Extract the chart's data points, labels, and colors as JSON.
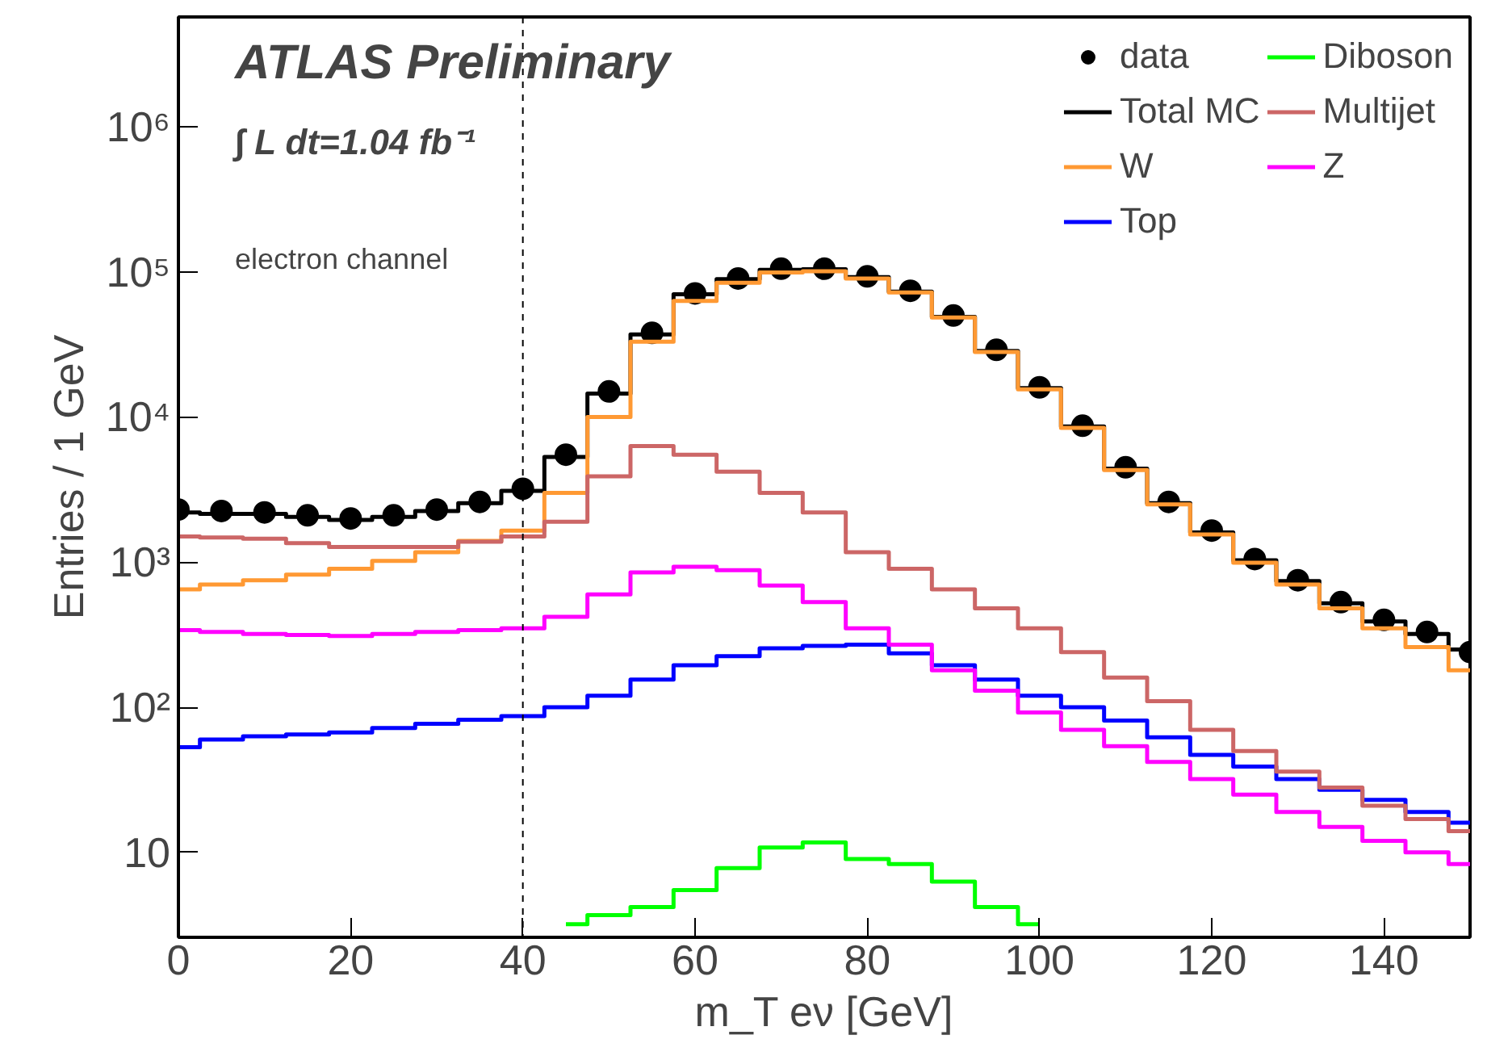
{
  "chart_data": {
    "type": "step",
    "title": "ATLAS Preliminary",
    "annotations": [
      "∫ L dt=1.04 fb⁻¹",
      "electron channel"
    ],
    "xlabel": "m_T eν [GeV]",
    "ylabel": "Entries / 1 GeV",
    "x": [
      0,
      5,
      10,
      15,
      20,
      25,
      30,
      35,
      40,
      45,
      50,
      55,
      60,
      65,
      70,
      75,
      80,
      85,
      90,
      95,
      100,
      105,
      110,
      115,
      120,
      125,
      130,
      135,
      140,
      145,
      150
    ],
    "xlim": [
      0,
      150
    ],
    "xticks": [
      0,
      20,
      40,
      60,
      80,
      100,
      120,
      140
    ],
    "ylim": [
      2.6,
      5700000
    ],
    "log": "y",
    "yticks": [
      10,
      {
        "value": 100,
        "label": "10²"
      },
      {
        "value": 1000,
        "label": "10³"
      },
      {
        "value": 10000,
        "label": "10⁴"
      },
      {
        "value": 100000,
        "label": "10⁵"
      },
      {
        "value": 1000000,
        "label": "10⁶"
      }
    ],
    "legend": "top right",
    "grid": false,
    "ref_lines": [
      {
        "axis": "x",
        "value": 40,
        "label": null,
        "color": "#000000",
        "line_style": "dashed"
      }
    ],
    "series": [
      {
        "name": "data",
        "type": "scatter",
        "marker": "circle",
        "color": "#000000",
        "values": [
          2300,
          2250,
          2200,
          2100,
          2000,
          2100,
          2300,
          2600,
          3200,
          5500,
          15000,
          38000,
          71000,
          90000,
          105000,
          105000,
          93000,
          74000,
          50000,
          29000,
          16000,
          8700,
          4500,
          2600,
          1650,
          1050,
          750,
          530,
          400,
          330,
          240
        ]
      },
      {
        "name": "Total MC",
        "color": "#000000",
        "values": [
          2200,
          2150,
          2150,
          2050,
          1950,
          2050,
          2250,
          2550,
          3100,
          5300,
          14500,
          37000,
          70000,
          89000,
          103000,
          104000,
          92000,
          73000,
          49000,
          28500,
          15800,
          8600,
          4400,
          2550,
          1600,
          1030,
          740,
          520,
          390,
          320,
          250
        ]
      },
      {
        "name": "W",
        "color": "#ff9933",
        "values": [
          650,
          700,
          750,
          820,
          900,
          1020,
          1170,
          1400,
          1650,
          3000,
          10000,
          33000,
          63000,
          84000,
          99000,
          101000,
          90000,
          72000,
          48500,
          28000,
          15500,
          8400,
          4300,
          2500,
          1550,
          990,
          700,
          480,
          350,
          260,
          180
        ]
      },
      {
        "name": "Top",
        "color": "#0000ff",
        "values": [
          53,
          60,
          63,
          65,
          67,
          72,
          77,
          82,
          87,
          100,
          120,
          155,
          195,
          225,
          255,
          265,
          270,
          235,
          195,
          155,
          120,
          100,
          81,
          62,
          47,
          39,
          32,
          27,
          23,
          19,
          16
        ]
      },
      {
        "name": "Diboson",
        "color": "#00ff00",
        "values": [
          null,
          null,
          null,
          null,
          null,
          null,
          null,
          null,
          null,
          3.2,
          3.7,
          4.2,
          5.5,
          7.8,
          10.8,
          11.7,
          9,
          8.3,
          6.3,
          4.2,
          3.2,
          null,
          null,
          null,
          null,
          null,
          null,
          null,
          null,
          null,
          null
        ]
      },
      {
        "name": "Multijet",
        "color": "#cc6666",
        "values": [
          1500,
          1480,
          1450,
          1350,
          1270,
          1270,
          1270,
          1380,
          1500,
          1900,
          3900,
          6300,
          5500,
          4200,
          3000,
          2200,
          1170,
          900,
          650,
          480,
          350,
          240,
          160,
          110,
          70,
          50,
          36,
          28,
          21,
          17,
          14
        ]
      },
      {
        "name": "Z",
        "color": "#ff00ff",
        "values": [
          340,
          330,
          320,
          315,
          310,
          320,
          330,
          340,
          350,
          420,
          600,
          850,
          930,
          880,
          690,
          530,
          350,
          270,
          180,
          130,
          92,
          70,
          54,
          42,
          32,
          25,
          19,
          15,
          12,
          10,
          8.3
        ]
      }
    ]
  }
}
